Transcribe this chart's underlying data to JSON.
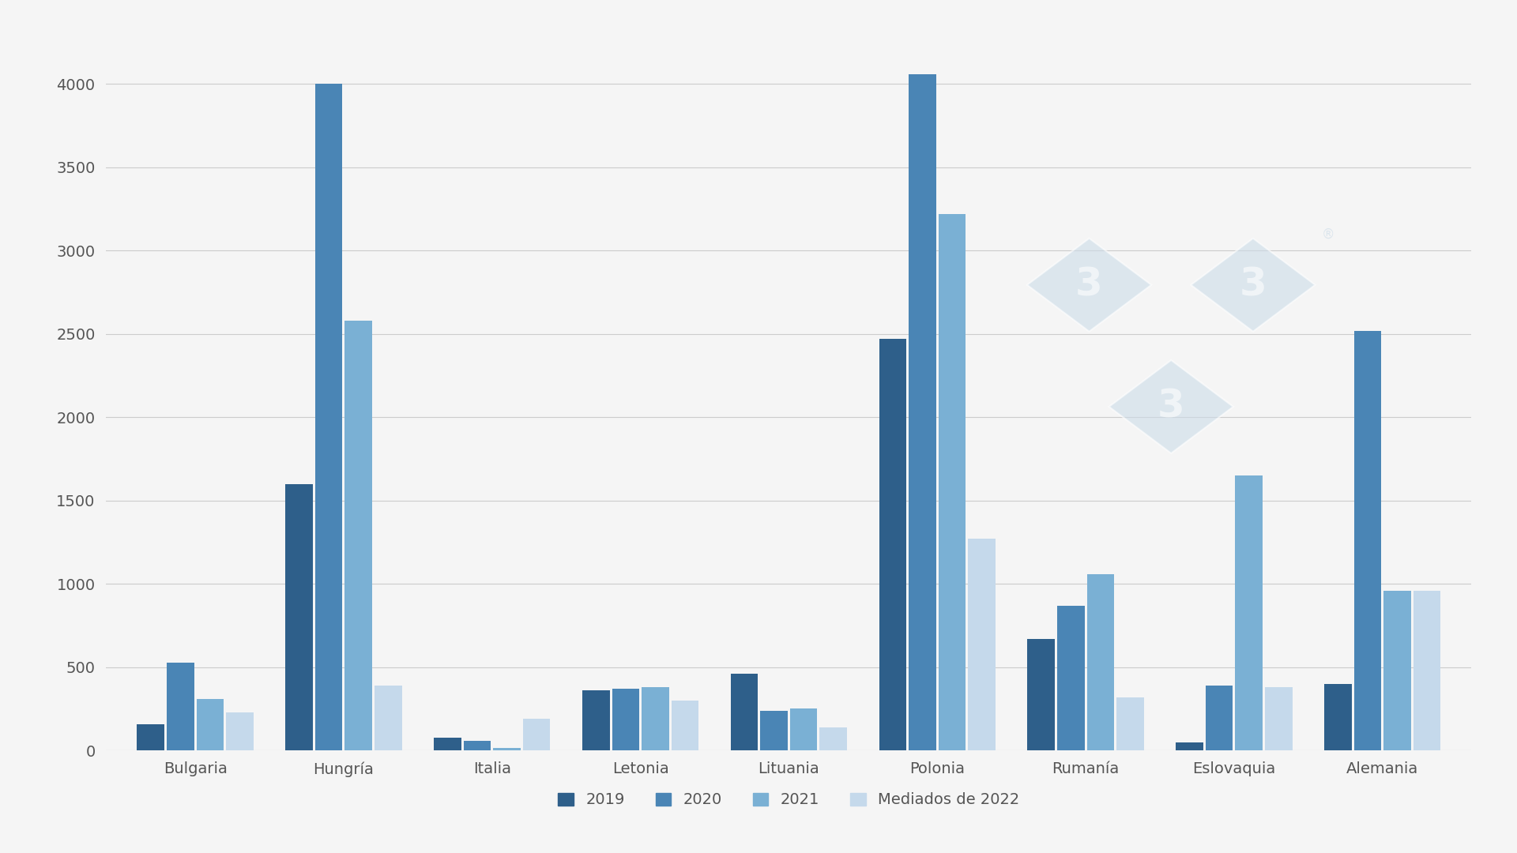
{
  "categories": [
    "Bulgaria",
    "Hungría",
    "Italia",
    "Letonia",
    "Lituania",
    "Polonia",
    "Rumanía",
    "Eslovaquia",
    "Alemania"
  ],
  "series": {
    "2019": [
      160,
      1600,
      80,
      360,
      460,
      2470,
      670,
      50,
      400
    ],
    "2020": [
      530,
      4000,
      60,
      370,
      240,
      4060,
      870,
      390,
      2520
    ],
    "2021": [
      310,
      2580,
      15,
      380,
      255,
      3220,
      1060,
      1650,
      960
    ],
    "Mediados de 2022": [
      230,
      390,
      190,
      300,
      140,
      1270,
      320,
      380,
      960
    ]
  },
  "colors": {
    "2019": "#2e5f8a",
    "2020": "#4a85b5",
    "2021": "#7ab0d4",
    "Mediados de 2022": "#c5d9eb"
  },
  "legend_labels": [
    "2019",
    "2020",
    "2021",
    "Mediados de 2022"
  ],
  "ylim": [
    0,
    4300
  ],
  "yticks": [
    0,
    500,
    1000,
    1500,
    2000,
    2500,
    3000,
    3500,
    4000
  ],
  "background_color": "#f5f5f5",
  "plot_bg_color": "#f5f5f5",
  "grid_color": "#cccccc",
  "bar_width": 0.2,
  "tick_fontsize": 14,
  "legend_fontsize": 14,
  "axis_label_color": "#555555",
  "watermark_color": "#ccdce8",
  "watermark_alpha": 0.6
}
